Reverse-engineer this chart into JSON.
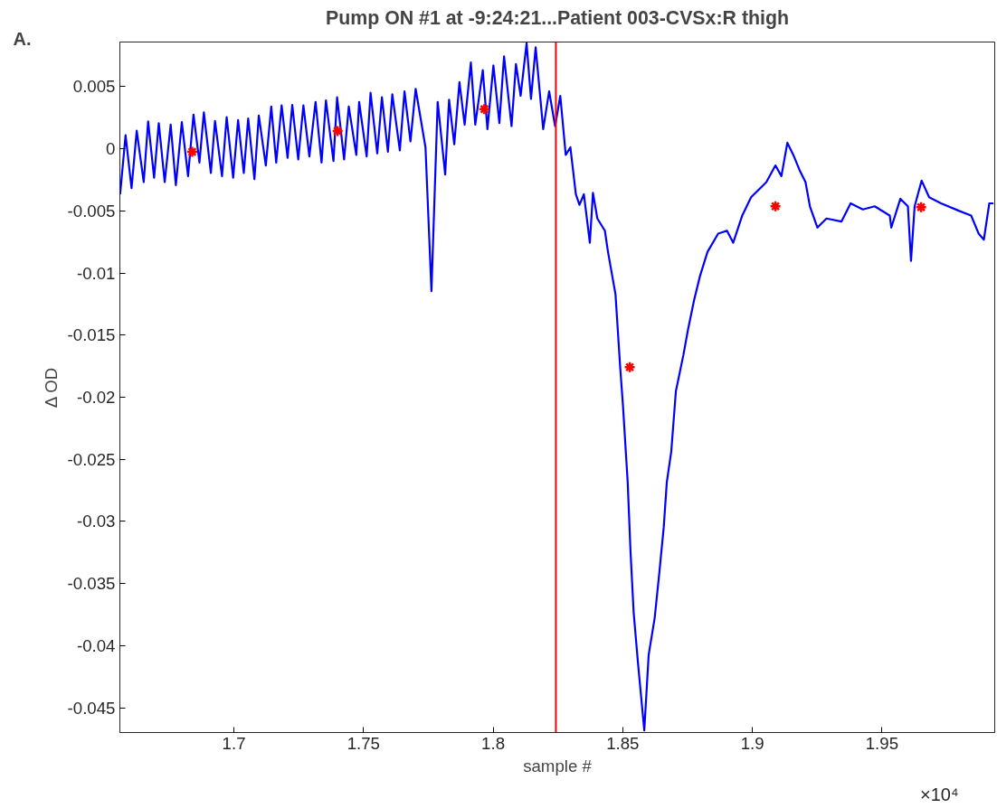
{
  "chart_data": {
    "type": "line",
    "title": "Pump ON #1 at -9:24:21...Patient 003-CVSx:R thigh",
    "xlabel": "sample #",
    "ylabel": "Δ OD",
    "annotations": [
      "A.",
      "×10⁴"
    ],
    "xlim": [
      1.656,
      1.9935
    ],
    "ylim": [
      -0.047,
      0.0086
    ],
    "xticks": [
      1.7,
      1.75,
      1.8,
      1.85,
      1.9,
      1.95
    ],
    "yticks": [
      0.005,
      0,
      -0.005,
      -0.01,
      -0.015,
      -0.02,
      -0.025,
      -0.03,
      -0.035,
      -0.04,
      -0.045
    ],
    "grid": false,
    "ref_lines": [
      {
        "axis": "x",
        "value": 1.8242,
        "color": "#ff0000"
      }
    ],
    "series": [
      {
        "color": "#0000ff",
        "line_style": "solid",
        "x": [
          1.6561,
          1.6582,
          1.6605,
          1.6625,
          1.6652,
          1.6669,
          1.6692,
          1.671,
          1.6733,
          1.6756,
          1.6776,
          1.6799,
          1.6823,
          1.6844,
          1.6867,
          1.6884,
          1.6911,
          1.6927,
          1.6954,
          1.6972,
          1.6997,
          1.7016,
          1.7038,
          1.7055,
          1.7079,
          1.7096,
          1.7123,
          1.7144,
          1.7163,
          1.7184,
          1.7207,
          1.7225,
          1.7248,
          1.7268,
          1.7291,
          1.7315,
          1.7338,
          1.7355,
          1.7384,
          1.7398,
          1.7425,
          1.7443,
          1.7472,
          1.7483,
          1.7512,
          1.7527,
          1.7553,
          1.7571,
          1.7594,
          1.7611,
          1.764,
          1.7658,
          1.7681,
          1.7701,
          1.7739,
          1.7762,
          1.7786,
          1.7815,
          1.783,
          1.785,
          1.787,
          1.789,
          1.7914,
          1.7931,
          1.796,
          1.7978,
          1.8001,
          1.8024,
          1.8042,
          1.8071,
          1.8088,
          1.8106,
          1.8129,
          1.8146,
          1.8164,
          1.8193,
          1.8216,
          1.8239,
          1.8259,
          1.828,
          1.8298,
          1.8319,
          1.8333,
          1.835,
          1.8373,
          1.8385,
          1.8402,
          1.8431,
          1.8443,
          1.8472,
          1.849,
          1.8501,
          1.8519,
          1.853,
          1.8542,
          1.8559,
          1.8583,
          1.86,
          1.8623,
          1.8641,
          1.8658,
          1.867,
          1.8687,
          1.8705,
          1.8734,
          1.8751,
          1.8775,
          1.8798,
          1.8827,
          1.8868,
          1.8902,
          1.8926,
          1.8961,
          1.8995,
          1.9054,
          1.9089,
          1.9112,
          1.9135,
          1.9158,
          1.9182,
          1.9205,
          1.9222,
          1.9251,
          1.9286,
          1.9344,
          1.9379,
          1.9426,
          1.9472,
          1.953,
          1.9536,
          1.9571,
          1.96,
          1.9612,
          1.9626,
          1.9653,
          1.9682,
          1.9728,
          1.9798,
          1.9844,
          1.9873,
          1.9893,
          1.9914,
          1.993
        ],
        "values": [
          -0.00366,
          0.0011,
          -0.00317,
          0.00146,
          -0.00268,
          0.0022,
          -0.00232,
          0.00207,
          -0.00268,
          0.00195,
          -0.00293,
          0.00215,
          -0.0022,
          0.00276,
          -0.0011,
          0.00293,
          -0.00195,
          0.00224,
          -0.0022,
          0.00256,
          -0.00232,
          0.00232,
          -0.00195,
          0.00244,
          -0.00244,
          0.00268,
          -0.00134,
          0.00341,
          -0.0011,
          0.00349,
          -0.00073,
          0.00354,
          -0.00085,
          0.00349,
          -0.00061,
          0.00378,
          -0.0011,
          0.0039,
          -0.00098,
          0.00415,
          -0.00085,
          0.00341,
          -0.00049,
          0.00378,
          -0.00061,
          0.00451,
          -0.00037,
          0.00415,
          -0.00024,
          0.00439,
          -0.00012,
          0.00463,
          0.00061,
          0.00483,
          0.00012,
          -0.01146,
          0.00378,
          -0.00207,
          0.00395,
          0.00037,
          0.00537,
          0.00195,
          0.00695,
          0.00195,
          0.00634,
          0.00159,
          0.00671,
          0.00207,
          0.00744,
          0.00183,
          0.00683,
          0.00427,
          0.0085,
          0.00402,
          0.00817,
          0.00159,
          0.00463,
          0.00183,
          0.00427,
          -0.00049,
          0.00012,
          -0.00366,
          -0.00451,
          -0.00366,
          -0.00756,
          -0.00354,
          -0.00561,
          -0.00659,
          -0.00829,
          -0.01171,
          -0.01756,
          -0.02073,
          -0.02683,
          -0.03244,
          -0.03732,
          -0.04146,
          -0.04683,
          -0.04073,
          -0.0378,
          -0.03415,
          -0.03049,
          -0.02683,
          -0.02439,
          -0.01951,
          -0.01659,
          -0.01463,
          -0.0122,
          -0.01024,
          -0.00829,
          -0.00683,
          -0.00659,
          -0.00756,
          -0.00537,
          -0.0039,
          -0.00268,
          -0.00134,
          -0.0022,
          0.00049,
          -0.00049,
          -0.00171,
          -0.00268,
          -0.00463,
          -0.00634,
          -0.00561,
          -0.00585,
          -0.00439,
          -0.00488,
          -0.00463,
          -0.00537,
          -0.00634,
          -0.00402,
          -0.00463,
          -0.00902,
          -0.00463,
          -0.00256,
          -0.0039,
          -0.00439,
          -0.005,
          -0.00537,
          -0.00683,
          -0.00732,
          -0.00439,
          -0.00439
        ]
      },
      {
        "type": "scatter",
        "color": "#ff0000",
        "marker": "cross",
        "x": [
          1.6839,
          1.74,
          1.7966,
          1.8527,
          1.9089,
          1.9651
        ],
        "values": [
          -0.00024,
          0.00144,
          0.0032,
          -0.01758,
          -0.00463,
          -0.0047
        ]
      }
    ]
  }
}
